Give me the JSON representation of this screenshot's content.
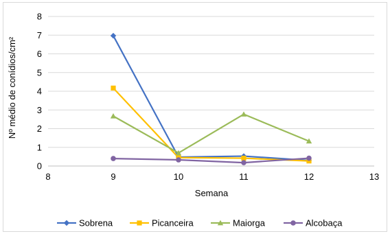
{
  "chart_data": {
    "type": "line",
    "xlabel": "Semana",
    "ylabel": "Nº médio de conídios/cm²",
    "xlim": [
      8,
      13
    ],
    "ylim": [
      0,
      8
    ],
    "x_ticks": [
      8,
      9,
      10,
      11,
      12,
      13
    ],
    "y_ticks": [
      0,
      1,
      2,
      3,
      4,
      5,
      6,
      7,
      8
    ],
    "grid": "horizontal",
    "legend_position": "bottom",
    "series": [
      {
        "name": "Sobrena",
        "color": "#4472C4",
        "marker": "diamond",
        "x": [
          9,
          10,
          11,
          12
        ],
        "y": [
          6.97,
          0.48,
          0.53,
          0.3
        ]
      },
      {
        "name": "Picanceira",
        "color": "#FFC000",
        "marker": "square",
        "x": [
          9,
          10,
          11,
          12
        ],
        "y": [
          4.17,
          0.45,
          0.42,
          0.27
        ]
      },
      {
        "name": "Maiorga",
        "color": "#9BBB59",
        "marker": "triangle",
        "x": [
          9,
          10,
          11,
          12
        ],
        "y": [
          2.67,
          0.7,
          2.77,
          1.33
        ]
      },
      {
        "name": "Alcobaça",
        "color": "#8064A2",
        "marker": "circle",
        "x": [
          9,
          10,
          11,
          12
        ],
        "y": [
          0.4,
          0.33,
          0.18,
          0.42
        ]
      }
    ]
  }
}
